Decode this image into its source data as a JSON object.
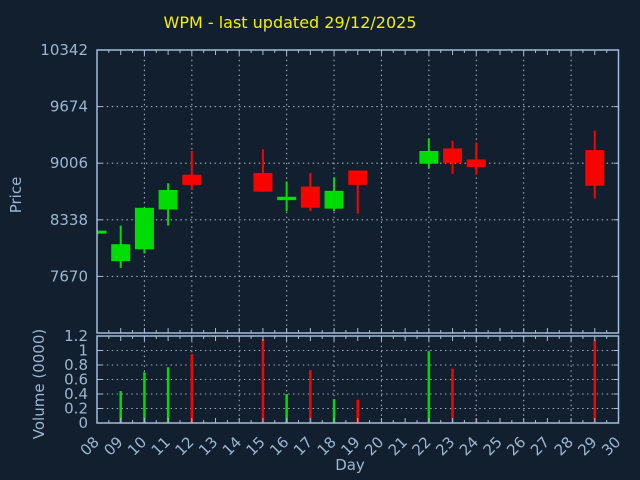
{
  "title": "WPM - last updated 29/12/2025",
  "colors": {
    "background": "#121f2e",
    "axis": "#a4bcd9",
    "tick_label": "#9db6d2",
    "title": "#f2f200",
    "grid": "#c2ccd6",
    "up": "#00dd04",
    "down": "#f80400"
  },
  "chart_data": [
    {
      "type": "candlestick",
      "title": "WPM - last updated 29/12/2025",
      "xlabel": "Day",
      "ylabel": "Price",
      "xlim": [
        8,
        30
      ],
      "ylim": [
        7002,
        10342
      ],
      "yticks": [
        7670,
        8338,
        9006,
        9674,
        10342
      ],
      "xticklabels": [
        "08",
        "09",
        "10",
        "11",
        "12",
        "13",
        "14",
        "15",
        "16",
        "17",
        "18",
        "19",
        "20",
        "21",
        "22",
        "23",
        "24",
        "25",
        "26",
        "27",
        "28",
        "29",
        "30"
      ],
      "grid": true,
      "grid_x_days": [
        10,
        12,
        14,
        16,
        18,
        20,
        22,
        24,
        26,
        28
      ],
      "legend": false,
      "candles": [
        {
          "day": 8,
          "open": 8210,
          "high": 8210,
          "low": 8210,
          "close": 8210,
          "direction": "up"
        },
        {
          "day": 9,
          "open": 7850,
          "high": 8270,
          "low": 7770,
          "close": 8050,
          "direction": "up"
        },
        {
          "day": 10,
          "open": 7990,
          "high": 8480,
          "low": 7940,
          "close": 8480,
          "direction": "up"
        },
        {
          "day": 11,
          "open": 8460,
          "high": 8770,
          "low": 8270,
          "close": 8690,
          "direction": "up"
        },
        {
          "day": 12,
          "open": 8870,
          "high": 9150,
          "low": 8690,
          "close": 8750,
          "direction": "down"
        },
        {
          "day": 15,
          "open": 8890,
          "high": 9170,
          "low": 8670,
          "close": 8670,
          "direction": "down"
        },
        {
          "day": 16,
          "open": 8570,
          "high": 8790,
          "low": 8440,
          "close": 8610,
          "direction": "up"
        },
        {
          "day": 17,
          "open": 8730,
          "high": 8890,
          "low": 8440,
          "close": 8480,
          "direction": "down"
        },
        {
          "day": 18,
          "open": 8470,
          "high": 8840,
          "low": 8440,
          "close": 8680,
          "direction": "up"
        },
        {
          "day": 19,
          "open": 8920,
          "high": 8920,
          "low": 8410,
          "close": 8750,
          "direction": "down"
        },
        {
          "day": 22,
          "open": 9000,
          "high": 9300,
          "low": 8950,
          "close": 9150,
          "direction": "up"
        },
        {
          "day": 23,
          "open": 9180,
          "high": 9270,
          "low": 8880,
          "close": 9010,
          "direction": "down"
        },
        {
          "day": 24,
          "open": 9050,
          "high": 9250,
          "low": 8870,
          "close": 8960,
          "direction": "down"
        },
        {
          "day": 29,
          "open": 9160,
          "high": 9390,
          "low": 8590,
          "close": 8740,
          "direction": "down"
        }
      ]
    },
    {
      "type": "bar",
      "ylabel": "Volume (0000)",
      "ylim": [
        0,
        1.2
      ],
      "yticks": [
        0,
        0.2,
        0.4,
        0.6,
        0.8,
        1,
        1.2
      ],
      "ytick_labels": [
        "0",
        "0.2",
        "0.4",
        "0.6",
        "0.8",
        "1",
        "1.2"
      ],
      "bars": [
        {
          "day": 9,
          "value": 0.44,
          "direction": "up"
        },
        {
          "day": 10,
          "value": 0.7,
          "direction": "up"
        },
        {
          "day": 11,
          "value": 0.77,
          "direction": "up"
        },
        {
          "day": 12,
          "value": 0.95,
          "direction": "down"
        },
        {
          "day": 15,
          "value": 1.16,
          "direction": "down"
        },
        {
          "day": 16,
          "value": 0.4,
          "direction": "up"
        },
        {
          "day": 17,
          "value": 0.73,
          "direction": "down"
        },
        {
          "day": 18,
          "value": 0.33,
          "direction": "up"
        },
        {
          "day": 19,
          "value": 0.32,
          "direction": "down"
        },
        {
          "day": 22,
          "value": 0.99,
          "direction": "up"
        },
        {
          "day": 23,
          "value": 0.75,
          "direction": "down"
        },
        {
          "day": 24,
          "value": 0.06,
          "direction": "down"
        },
        {
          "day": 29,
          "value": 1.15,
          "direction": "down"
        }
      ]
    }
  ]
}
